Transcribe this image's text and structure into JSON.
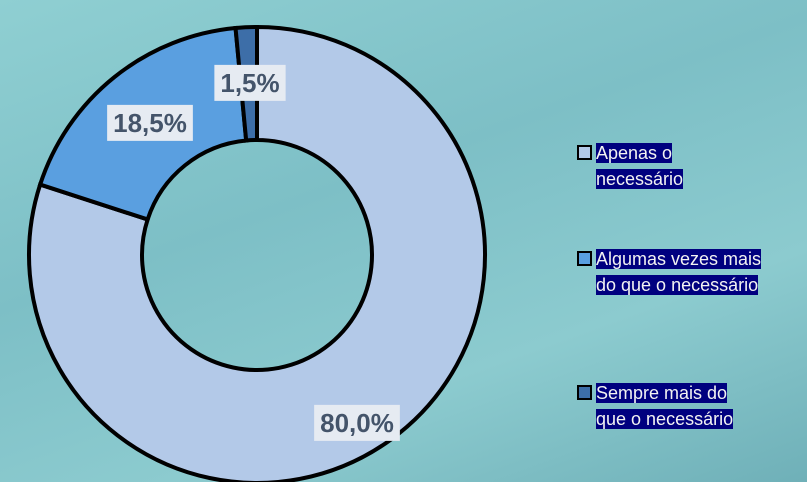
{
  "chart_data": {
    "type": "pie",
    "donut": true,
    "categories": [
      "Apenas o necessário",
      "Algumas vezes mais do que o necessário",
      "Sempre mais do que o necessário"
    ],
    "values": [
      80,
      18.5,
      1.5
    ],
    "value_labels": [
      "80,0%",
      "18,5%",
      "1,5%"
    ],
    "colors": [
      "#b3c9e8",
      "#5a9fe0",
      "#3d6ea8"
    ],
    "legend": "right"
  }
}
